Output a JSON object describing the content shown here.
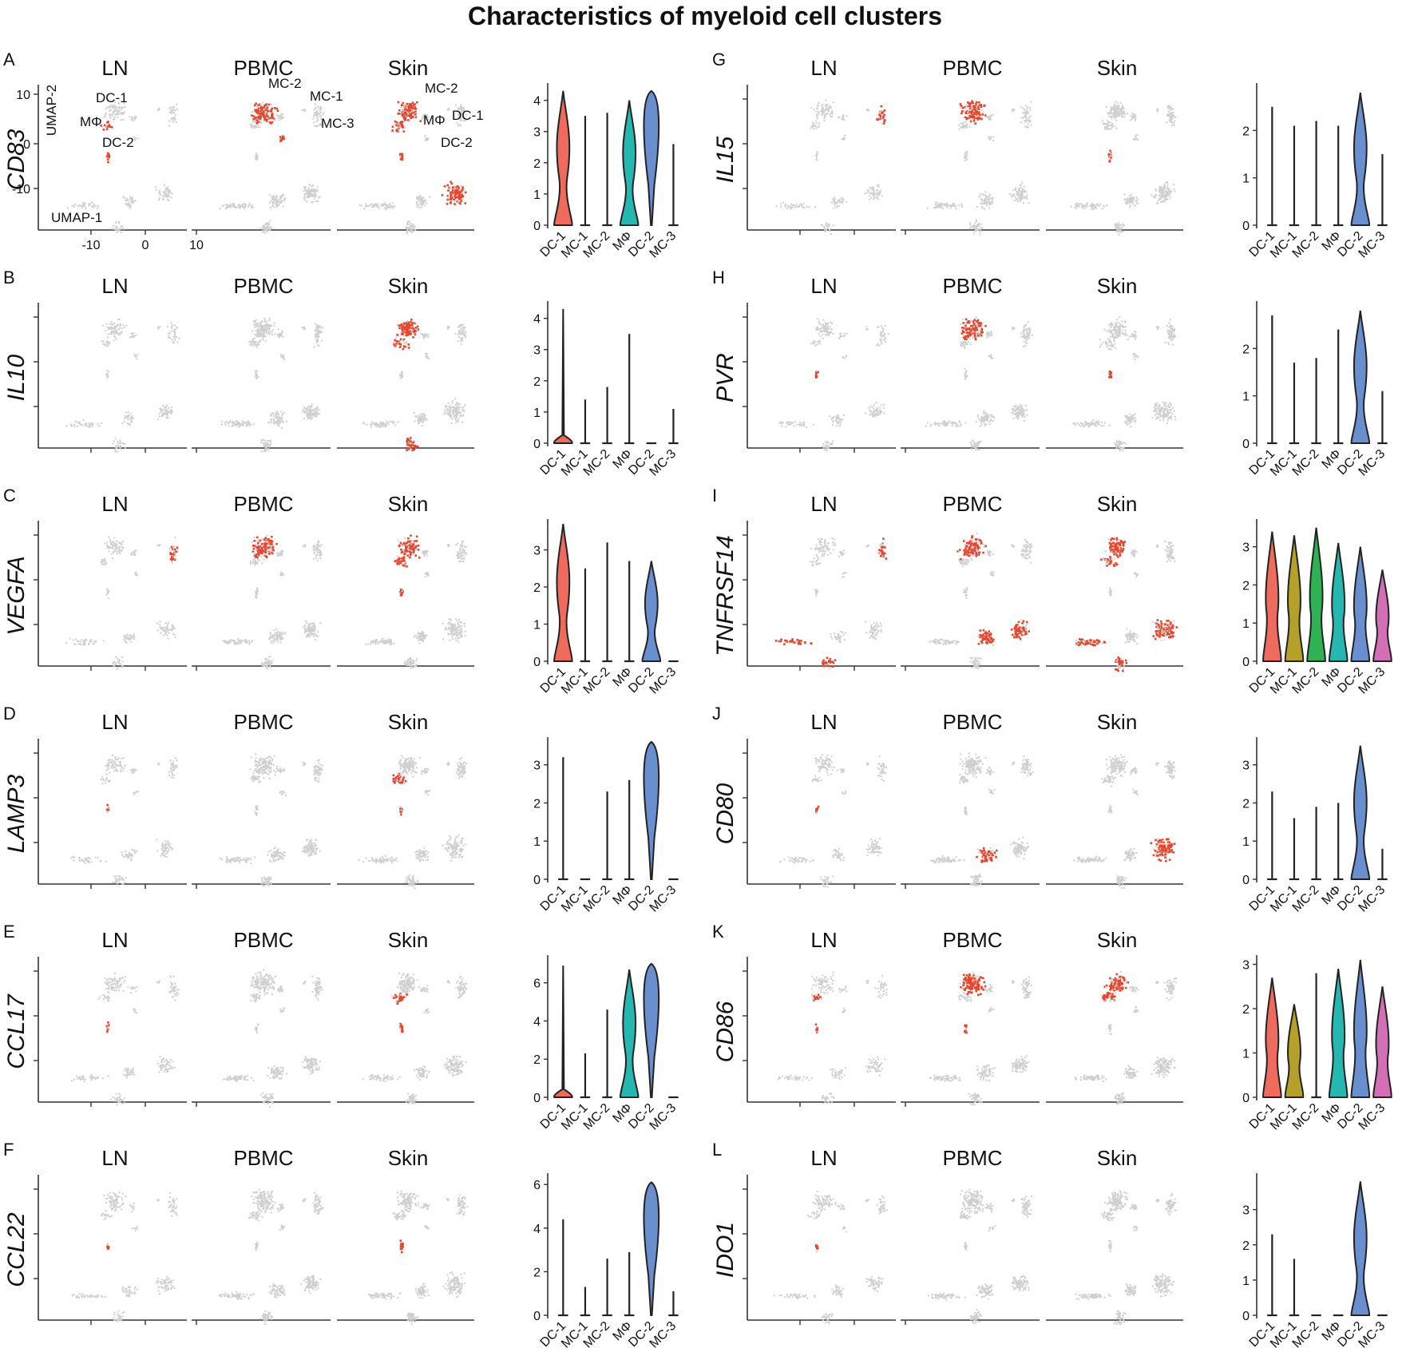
{
  "title": "Characteristics of myeloid cell clusters",
  "colors": {
    "DC-1": "#ef6b5d",
    "MC-1": "#b5a12a",
    "MC-2": "#2fb254",
    "MΦ": "#25b7b0",
    "DC-2": "#6a8fcf",
    "MC-3": "#d36fb4",
    "expressed": "#e8452c",
    "background": "#cfcfcf"
  },
  "tissues": [
    "LN",
    "PBMC",
    "Skin"
  ],
  "umap_axis": {
    "xlabel": "UMAP-1",
    "ylabel": "UMAP-2",
    "xticks": [
      "-10",
      "0",
      "10"
    ],
    "yticks": [
      "10",
      "0",
      "-10"
    ]
  },
  "cluster_labels": {
    "LN": [
      "DC-1",
      "MΦ",
      "DC-2"
    ],
    "PBMC": [
      "MC-2",
      "MC-1",
      "MC-3"
    ],
    "Skin": [
      "MC-2",
      "MΦ",
      "DC-1",
      "DC-2"
    ]
  },
  "chart_data": [
    {
      "panel": "A",
      "gene": "CD83",
      "type": "violin",
      "categories": [
        "DC-1",
        "MC-1",
        "MC-2",
        "MΦ",
        "DC-2",
        "MC-3"
      ],
      "ymax": 4.4,
      "yticks": [
        0,
        1,
        2,
        3,
        4
      ],
      "max_values": [
        4.3,
        3.5,
        3.6,
        4.0,
        4.3,
        2.6
      ],
      "shapes": [
        "bimodal",
        "line",
        "line",
        "bimodal",
        "high",
        "line"
      ],
      "fill": [
        true,
        false,
        false,
        true,
        true,
        false
      ]
    },
    {
      "panel": "B",
      "gene": "IL10",
      "type": "violin",
      "categories": [
        "DC-1",
        "MC-1",
        "MC-2",
        "MΦ",
        "DC-2",
        "MC-3"
      ],
      "ymax": 4.4,
      "yticks": [
        0,
        1,
        2,
        3,
        4
      ],
      "max_values": [
        4.3,
        1.4,
        1.8,
        3.5,
        0.0,
        1.1
      ],
      "shapes": [
        "zero",
        "line",
        "line",
        "line",
        "line",
        "line"
      ],
      "fill": [
        true,
        false,
        false,
        false,
        false,
        false
      ]
    },
    {
      "panel": "C",
      "gene": "VEGFA",
      "type": "violin",
      "categories": [
        "DC-1",
        "MC-1",
        "MC-2",
        "MΦ",
        "DC-2",
        "MC-3"
      ],
      "ymax": 3.7,
      "yticks": [
        0,
        1,
        2,
        3
      ],
      "max_values": [
        3.7,
        2.5,
        3.2,
        2.7,
        2.7,
        0.0
      ],
      "shapes": [
        "bimodal",
        "line",
        "line",
        "line",
        "bimodal",
        "line"
      ],
      "fill": [
        true,
        false,
        false,
        false,
        true,
        false
      ]
    },
    {
      "panel": "D",
      "gene": "LAMP3",
      "type": "violin",
      "categories": [
        "DC-1",
        "MC-1",
        "MC-2",
        "MΦ",
        "DC-2",
        "MC-3"
      ],
      "ymax": 3.6,
      "yticks": [
        0,
        1,
        2,
        3
      ],
      "max_values": [
        3.2,
        0.0,
        2.3,
        2.6,
        3.6,
        0.0
      ],
      "shapes": [
        "line",
        "line",
        "line",
        "line",
        "high",
        "line"
      ],
      "fill": [
        false,
        false,
        false,
        false,
        true,
        false
      ]
    },
    {
      "panel": "E",
      "gene": "CCL17",
      "type": "violin",
      "categories": [
        "DC-1",
        "MC-1",
        "MC-2",
        "MΦ",
        "DC-2",
        "MC-3"
      ],
      "ymax": 7.2,
      "yticks": [
        0,
        2,
        4,
        6
      ],
      "max_values": [
        6.9,
        2.3,
        4.6,
        6.7,
        7.0,
        0.0
      ],
      "shapes": [
        "zero",
        "line",
        "line",
        "bimodal",
        "high",
        "line"
      ],
      "fill": [
        true,
        false,
        false,
        true,
        true,
        false
      ]
    },
    {
      "panel": "F",
      "gene": "CCL22",
      "type": "violin",
      "categories": [
        "DC-1",
        "MC-1",
        "MC-2",
        "MΦ",
        "DC-2",
        "MC-3"
      ],
      "ymax": 6.3,
      "yticks": [
        0,
        2,
        4,
        6
      ],
      "max_values": [
        4.4,
        1.3,
        2.6,
        2.9,
        6.1,
        1.1
      ],
      "shapes": [
        "line",
        "line",
        "line",
        "line",
        "high",
        "line"
      ],
      "fill": [
        false,
        false,
        false,
        false,
        true,
        false
      ]
    },
    {
      "panel": "G",
      "gene": "IL15",
      "type": "violin",
      "categories": [
        "DC-1",
        "MC-1",
        "MC-2",
        "MΦ",
        "DC-2",
        "MC-3"
      ],
      "ymax": 2.9,
      "yticks": [
        0,
        1,
        2
      ],
      "max_values": [
        2.5,
        2.1,
        2.2,
        2.1,
        2.8,
        1.5
      ],
      "shapes": [
        "line",
        "line",
        "line",
        "line",
        "bimodal",
        "line"
      ],
      "fill": [
        false,
        false,
        false,
        false,
        true,
        false
      ]
    },
    {
      "panel": "H",
      "gene": "PVR",
      "type": "violin",
      "categories": [
        "DC-1",
        "MC-1",
        "MC-2",
        "MΦ",
        "DC-2",
        "MC-3"
      ],
      "ymax": 2.9,
      "yticks": [
        0,
        1,
        2
      ],
      "max_values": [
        2.7,
        1.7,
        1.8,
        2.4,
        2.8,
        1.1
      ],
      "shapes": [
        "line",
        "line",
        "line",
        "line",
        "bimodal",
        "line"
      ],
      "fill": [
        false,
        false,
        false,
        false,
        true,
        false
      ]
    },
    {
      "panel": "I",
      "gene": "TNFRSF14",
      "type": "violin",
      "categories": [
        "DC-1",
        "MC-1",
        "MC-2",
        "MΦ",
        "DC-2",
        "MC-3"
      ],
      "ymax": 3.6,
      "yticks": [
        0,
        1,
        2,
        3
      ],
      "max_values": [
        3.4,
        3.3,
        3.5,
        3.1,
        3.0,
        2.4
      ],
      "shapes": [
        "broad",
        "broad",
        "broad",
        "broad",
        "broad",
        "broad"
      ],
      "fill": [
        true,
        true,
        true,
        true,
        true,
        true
      ]
    },
    {
      "panel": "J",
      "gene": "CD80",
      "type": "violin",
      "categories": [
        "DC-1",
        "MC-1",
        "MC-2",
        "MΦ",
        "DC-2",
        "MC-3"
      ],
      "ymax": 3.6,
      "yticks": [
        0,
        1,
        2,
        3
      ],
      "max_values": [
        2.3,
        1.6,
        1.9,
        2.0,
        3.5,
        0.8
      ],
      "shapes": [
        "line",
        "line",
        "line",
        "line",
        "bimodal",
        "line"
      ],
      "fill": [
        false,
        false,
        false,
        false,
        true,
        false
      ]
    },
    {
      "panel": "K",
      "gene": "CD86",
      "type": "violin",
      "categories": [
        "DC-1",
        "MC-1",
        "MC-2",
        "MΦ",
        "DC-2",
        "MC-3"
      ],
      "ymax": 3.1,
      "yticks": [
        0,
        1,
        2,
        3
      ],
      "max_values": [
        2.7,
        2.1,
        2.8,
        2.9,
        3.1,
        2.5
      ],
      "shapes": [
        "broad",
        "broad",
        "line",
        "broad",
        "broad",
        "broad"
      ],
      "fill": [
        true,
        true,
        false,
        true,
        true,
        true
      ]
    },
    {
      "panel": "L",
      "gene": "IDO1",
      "type": "violin",
      "categories": [
        "DC-1",
        "MC-1",
        "MC-2",
        "MΦ",
        "DC-2",
        "MC-3"
      ],
      "ymax": 3.9,
      "yticks": [
        0,
        1,
        2,
        3
      ],
      "max_values": [
        2.3,
        1.6,
        0.0,
        0.0,
        3.8,
        0.0
      ],
      "shapes": [
        "line",
        "line",
        "line",
        "line",
        "bimodal",
        "line"
      ],
      "fill": [
        false,
        false,
        false,
        false,
        true,
        false
      ]
    }
  ]
}
